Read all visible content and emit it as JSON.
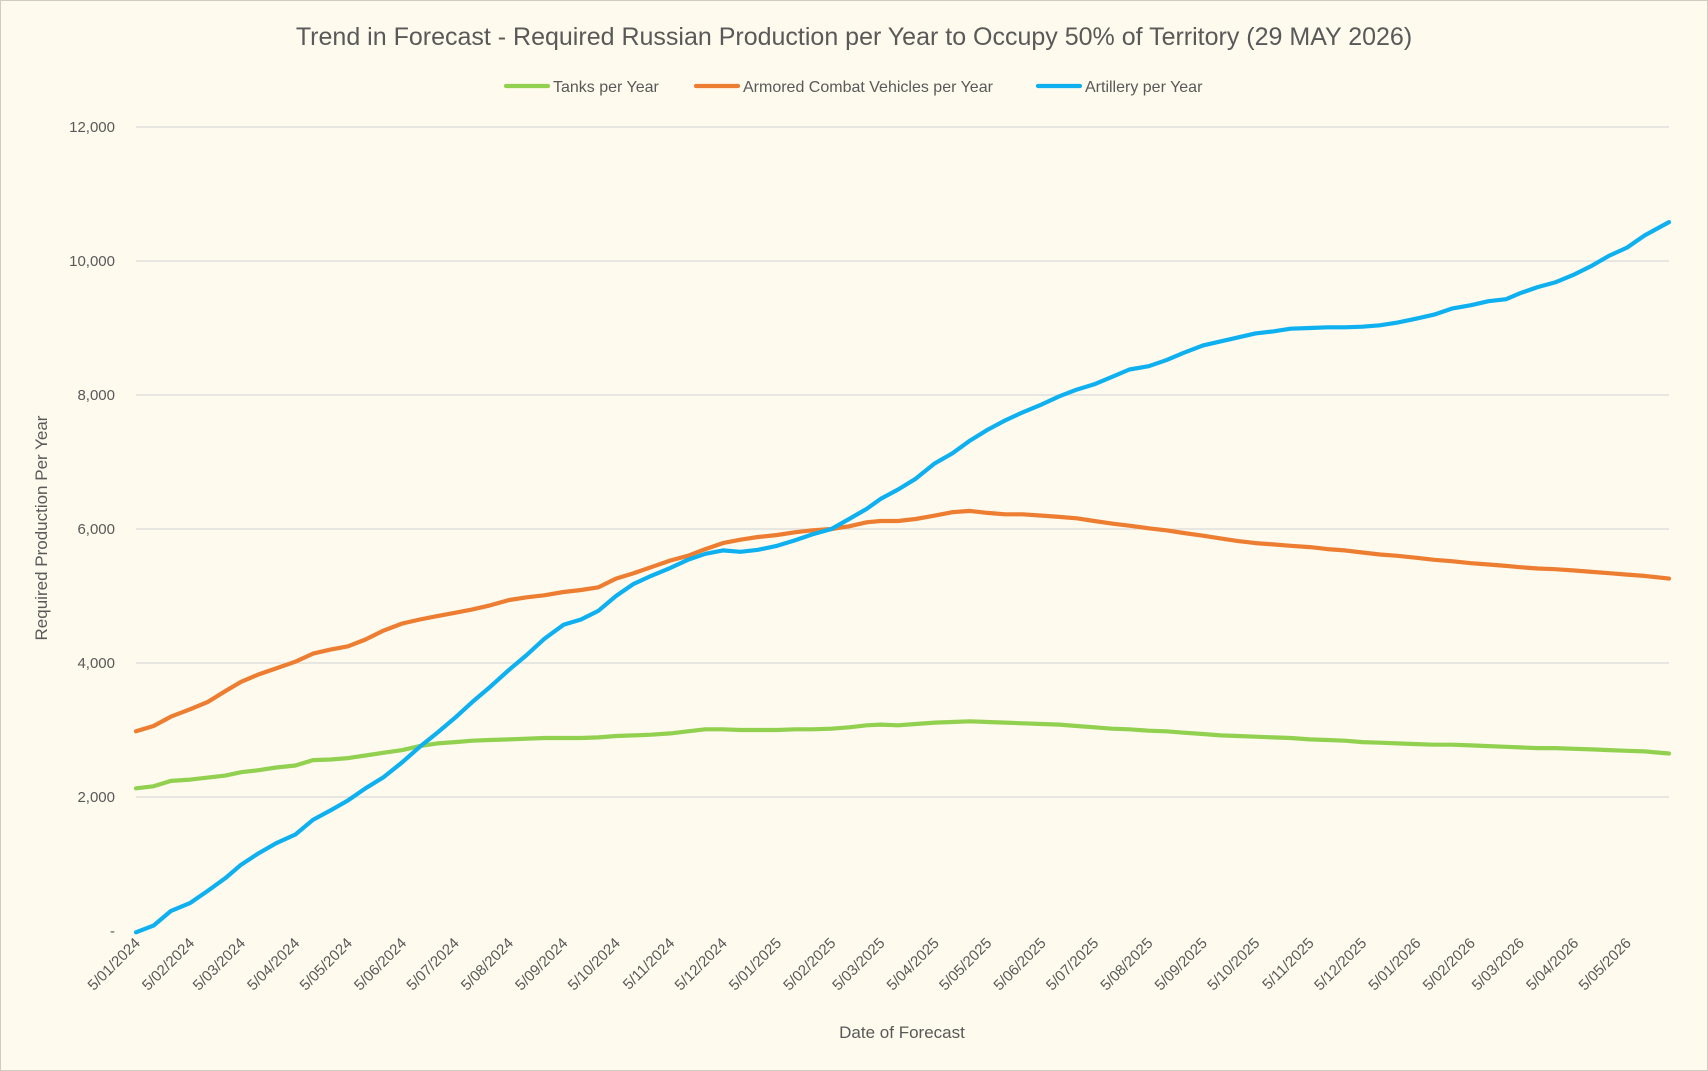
{
  "chart_data": {
    "type": "line",
    "title": "Trend in Forecast - Required Russian Production per Year to Occupy 50% of Territory (29 MAY 2026)",
    "xlabel": "Date of Forecast",
    "ylabel": "Required Production Per Year",
    "ylim": [
      0,
      12000
    ],
    "y_ticks": [
      {
        "value": 0,
        "label": "-"
      },
      {
        "value": 2000,
        "label": "2,000"
      },
      {
        "value": 4000,
        "label": "4,000"
      },
      {
        "value": 6000,
        "label": "6,000"
      },
      {
        "value": 8000,
        "label": "8,000"
      },
      {
        "value": 10000,
        "label": "10,000"
      },
      {
        "value": 12000,
        "label": "12,000"
      }
    ],
    "x_ticks": [
      "5/01/2024",
      "5/02/2024",
      "5/03/2024",
      "5/04/2024",
      "5/05/2024",
      "5/06/2024",
      "5/07/2024",
      "5/08/2024",
      "5/09/2024",
      "5/10/2024",
      "5/11/2024",
      "5/12/2024",
      "5/01/2025",
      "5/02/2025",
      "5/03/2025",
      "5/04/2025",
      "5/05/2025",
      "5/06/2025",
      "5/07/2025",
      "5/08/2025",
      "5/09/2025",
      "5/10/2025",
      "5/11/2025",
      "5/12/2025",
      "5/01/2026",
      "5/02/2026",
      "5/03/2026",
      "5/04/2026",
      "5/05/2026"
    ],
    "x_range": [
      "5/01/2024",
      "29/05/2026"
    ],
    "grid": true,
    "legend_position": "top",
    "series": [
      {
        "name": "Tanks per Year",
        "color": "#92d050",
        "points": [
          [
            "5/01/2024",
            2130
          ],
          [
            "15/01/2024",
            2160
          ],
          [
            "25/01/2024",
            2240
          ],
          [
            "5/02/2024",
            2260
          ],
          [
            "15/02/2024",
            2290
          ],
          [
            "25/02/2024",
            2320
          ],
          [
            "5/03/2024",
            2370
          ],
          [
            "15/03/2024",
            2400
          ],
          [
            "25/03/2024",
            2440
          ],
          [
            "5/04/2024",
            2470
          ],
          [
            "15/04/2024",
            2550
          ],
          [
            "25/04/2024",
            2560
          ],
          [
            "5/05/2024",
            2580
          ],
          [
            "15/05/2024",
            2620
          ],
          [
            "25/05/2024",
            2660
          ],
          [
            "5/06/2024",
            2700
          ],
          [
            "15/06/2024",
            2760
          ],
          [
            "25/06/2024",
            2800
          ],
          [
            "5/07/2024",
            2820
          ],
          [
            "15/07/2024",
            2840
          ],
          [
            "25/07/2024",
            2850
          ],
          [
            "5/08/2024",
            2860
          ],
          [
            "15/08/2024",
            2870
          ],
          [
            "25/08/2024",
            2880
          ],
          [
            "5/09/2024",
            2880
          ],
          [
            "15/09/2024",
            2880
          ],
          [
            "25/09/2024",
            2890
          ],
          [
            "5/10/2024",
            2910
          ],
          [
            "15/10/2024",
            2920
          ],
          [
            "25/10/2024",
            2930
          ],
          [
            "5/11/2024",
            2950
          ],
          [
            "15/11/2024",
            2980
          ],
          [
            "25/11/2024",
            3010
          ],
          [
            "5/12/2024",
            3010
          ],
          [
            "15/12/2024",
            3000
          ],
          [
            "25/12/2024",
            3000
          ],
          [
            "5/01/2025",
            3000
          ],
          [
            "15/01/2025",
            3010
          ],
          [
            "25/01/2025",
            3010
          ],
          [
            "5/02/2025",
            3020
          ],
          [
            "15/02/2025",
            3040
          ],
          [
            "25/02/2025",
            3070
          ],
          [
            "5/03/2025",
            3080
          ],
          [
            "15/03/2025",
            3070
          ],
          [
            "25/03/2025",
            3090
          ],
          [
            "5/04/2025",
            3110
          ],
          [
            "15/04/2025",
            3120
          ],
          [
            "25/04/2025",
            3130
          ],
          [
            "5/05/2025",
            3120
          ],
          [
            "15/05/2025",
            3110
          ],
          [
            "25/05/2025",
            3100
          ],
          [
            "5/06/2025",
            3090
          ],
          [
            "15/06/2025",
            3080
          ],
          [
            "25/06/2025",
            3060
          ],
          [
            "5/07/2025",
            3040
          ],
          [
            "15/07/2025",
            3020
          ],
          [
            "25/07/2025",
            3010
          ],
          [
            "5/08/2025",
            2990
          ],
          [
            "15/08/2025",
            2980
          ],
          [
            "25/08/2025",
            2960
          ],
          [
            "5/09/2025",
            2940
          ],
          [
            "15/09/2025",
            2920
          ],
          [
            "25/09/2025",
            2910
          ],
          [
            "5/10/2025",
            2900
          ],
          [
            "15/10/2025",
            2890
          ],
          [
            "25/10/2025",
            2880
          ],
          [
            "5/11/2025",
            2860
          ],
          [
            "15/11/2025",
            2850
          ],
          [
            "25/11/2025",
            2840
          ],
          [
            "5/12/2025",
            2820
          ],
          [
            "15/12/2025",
            2810
          ],
          [
            "25/12/2025",
            2800
          ],
          [
            "5/01/2026",
            2790
          ],
          [
            "15/01/2026",
            2780
          ],
          [
            "25/01/2026",
            2780
          ],
          [
            "5/02/2026",
            2770
          ],
          [
            "15/02/2026",
            2760
          ],
          [
            "25/02/2026",
            2750
          ],
          [
            "5/03/2026",
            2740
          ],
          [
            "15/03/2026",
            2730
          ],
          [
            "25/03/2026",
            2730
          ],
          [
            "5/04/2026",
            2720
          ],
          [
            "15/04/2026",
            2710
          ],
          [
            "25/04/2026",
            2700
          ],
          [
            "5/05/2026",
            2690
          ],
          [
            "15/05/2026",
            2680
          ],
          [
            "29/05/2026",
            2650
          ]
        ]
      },
      {
        "name": "Armored Combat Vehicles per Year",
        "color": "#ed7d31",
        "points": [
          [
            "5/01/2024",
            2980
          ],
          [
            "15/01/2024",
            3060
          ],
          [
            "25/01/2024",
            3200
          ],
          [
            "5/02/2024",
            3310
          ],
          [
            "15/02/2024",
            3420
          ],
          [
            "25/02/2024",
            3580
          ],
          [
            "5/03/2024",
            3720
          ],
          [
            "15/03/2024",
            3830
          ],
          [
            "25/03/2024",
            3920
          ],
          [
            "5/04/2024",
            4020
          ],
          [
            "15/04/2024",
            4140
          ],
          [
            "25/04/2024",
            4200
          ],
          [
            "5/05/2024",
            4250
          ],
          [
            "15/05/2024",
            4350
          ],
          [
            "25/05/2024",
            4480
          ],
          [
            "5/06/2024",
            4590
          ],
          [
            "15/06/2024",
            4650
          ],
          [
            "25/06/2024",
            4700
          ],
          [
            "5/07/2024",
            4750
          ],
          [
            "15/07/2024",
            4800
          ],
          [
            "25/07/2024",
            4860
          ],
          [
            "5/08/2024",
            4940
          ],
          [
            "15/08/2024",
            4980
          ],
          [
            "25/08/2024",
            5010
          ],
          [
            "5/09/2024",
            5060
          ],
          [
            "15/09/2024",
            5090
          ],
          [
            "25/09/2024",
            5130
          ],
          [
            "5/10/2024",
            5260
          ],
          [
            "15/10/2024",
            5340
          ],
          [
            "25/10/2024",
            5430
          ],
          [
            "5/11/2024",
            5530
          ],
          [
            "15/11/2024",
            5600
          ],
          [
            "25/11/2024",
            5700
          ],
          [
            "5/12/2024",
            5790
          ],
          [
            "15/12/2024",
            5840
          ],
          [
            "25/12/2024",
            5880
          ],
          [
            "5/01/2025",
            5910
          ],
          [
            "15/01/2025",
            5950
          ],
          [
            "25/01/2025",
            5980
          ],
          [
            "5/02/2025",
            6000
          ],
          [
            "15/02/2025",
            6040
          ],
          [
            "25/02/2025",
            6100
          ],
          [
            "5/03/2025",
            6120
          ],
          [
            "15/03/2025",
            6120
          ],
          [
            "25/03/2025",
            6150
          ],
          [
            "5/04/2025",
            6200
          ],
          [
            "15/04/2025",
            6250
          ],
          [
            "25/04/2025",
            6270
          ],
          [
            "5/05/2025",
            6240
          ],
          [
            "15/05/2025",
            6220
          ],
          [
            "25/05/2025",
            6220
          ],
          [
            "5/06/2025",
            6200
          ],
          [
            "15/06/2025",
            6180
          ],
          [
            "25/06/2025",
            6160
          ],
          [
            "5/07/2025",
            6120
          ],
          [
            "15/07/2025",
            6080
          ],
          [
            "25/07/2025",
            6050
          ],
          [
            "5/08/2025",
            6010
          ],
          [
            "15/08/2025",
            5980
          ],
          [
            "25/08/2025",
            5940
          ],
          [
            "5/09/2025",
            5900
          ],
          [
            "15/09/2025",
            5860
          ],
          [
            "25/09/2025",
            5820
          ],
          [
            "5/10/2025",
            5790
          ],
          [
            "15/10/2025",
            5770
          ],
          [
            "25/10/2025",
            5750
          ],
          [
            "5/11/2025",
            5730
          ],
          [
            "15/11/2025",
            5700
          ],
          [
            "25/11/2025",
            5680
          ],
          [
            "5/12/2025",
            5650
          ],
          [
            "15/12/2025",
            5620
          ],
          [
            "25/12/2025",
            5600
          ],
          [
            "5/01/2026",
            5570
          ],
          [
            "15/01/2026",
            5540
          ],
          [
            "25/01/2026",
            5520
          ],
          [
            "5/02/2026",
            5490
          ],
          [
            "15/02/2026",
            5470
          ],
          [
            "25/02/2026",
            5450
          ],
          [
            "5/03/2026",
            5430
          ],
          [
            "15/03/2026",
            5410
          ],
          [
            "25/03/2026",
            5400
          ],
          [
            "5/04/2026",
            5380
          ],
          [
            "15/04/2026",
            5360
          ],
          [
            "25/04/2026",
            5340
          ],
          [
            "5/05/2026",
            5320
          ],
          [
            "15/05/2026",
            5300
          ],
          [
            "29/05/2026",
            5260
          ]
        ]
      },
      {
        "name": "Artillery per Year",
        "color": "#0eb0f0",
        "points": [
          [
            "5/01/2024",
            -20
          ],
          [
            "15/01/2024",
            80
          ],
          [
            "25/01/2024",
            300
          ],
          [
            "5/02/2024",
            420
          ],
          [
            "15/02/2024",
            600
          ],
          [
            "25/02/2024",
            790
          ],
          [
            "5/03/2024",
            990
          ],
          [
            "15/03/2024",
            1160
          ],
          [
            "25/03/2024",
            1310
          ],
          [
            "5/04/2024",
            1440
          ],
          [
            "15/04/2024",
            1660
          ],
          [
            "25/04/2024",
            1800
          ],
          [
            "5/05/2024",
            1950
          ],
          [
            "15/05/2024",
            2130
          ],
          [
            "25/05/2024",
            2290
          ],
          [
            "5/06/2024",
            2520
          ],
          [
            "15/06/2024",
            2750
          ],
          [
            "25/06/2024",
            2960
          ],
          [
            "5/07/2024",
            3180
          ],
          [
            "15/07/2024",
            3420
          ],
          [
            "25/07/2024",
            3640
          ],
          [
            "5/08/2024",
            3900
          ],
          [
            "15/08/2024",
            4120
          ],
          [
            "25/08/2024",
            4360
          ],
          [
            "5/09/2024",
            4570
          ],
          [
            "15/09/2024",
            4650
          ],
          [
            "25/09/2024",
            4780
          ],
          [
            "5/10/2024",
            5000
          ],
          [
            "15/10/2024",
            5180
          ],
          [
            "25/10/2024",
            5300
          ],
          [
            "5/11/2024",
            5420
          ],
          [
            "15/11/2024",
            5540
          ],
          [
            "25/11/2024",
            5630
          ],
          [
            "5/12/2024",
            5680
          ],
          [
            "15/12/2024",
            5660
          ],
          [
            "25/12/2024",
            5690
          ],
          [
            "5/01/2025",
            5750
          ],
          [
            "15/01/2025",
            5830
          ],
          [
            "25/01/2025",
            5920
          ],
          [
            "5/02/2025",
            6000
          ],
          [
            "15/02/2025",
            6150
          ],
          [
            "25/02/2025",
            6300
          ],
          [
            "5/03/2025",
            6450
          ],
          [
            "15/03/2025",
            6590
          ],
          [
            "25/03/2025",
            6750
          ],
          [
            "5/04/2025",
            6980
          ],
          [
            "15/04/2025",
            7130
          ],
          [
            "25/04/2025",
            7320
          ],
          [
            "5/05/2025",
            7480
          ],
          [
            "15/05/2025",
            7620
          ],
          [
            "25/05/2025",
            7740
          ],
          [
            "5/06/2025",
            7860
          ],
          [
            "15/06/2025",
            7980
          ],
          [
            "25/06/2025",
            8080
          ],
          [
            "5/07/2025",
            8160
          ],
          [
            "15/07/2025",
            8270
          ],
          [
            "25/07/2025",
            8380
          ],
          [
            "5/08/2025",
            8430
          ],
          [
            "15/08/2025",
            8520
          ],
          [
            "25/08/2025",
            8630
          ],
          [
            "5/09/2025",
            8740
          ],
          [
            "15/09/2025",
            8800
          ],
          [
            "25/09/2025",
            8860
          ],
          [
            "5/10/2025",
            8920
          ],
          [
            "15/10/2025",
            8950
          ],
          [
            "25/10/2025",
            8990
          ],
          [
            "5/11/2025",
            9000
          ],
          [
            "15/11/2025",
            9010
          ],
          [
            "25/11/2025",
            9010
          ],
          [
            "5/12/2025",
            9020
          ],
          [
            "15/12/2025",
            9040
          ],
          [
            "25/12/2025",
            9080
          ],
          [
            "5/01/2026",
            9140
          ],
          [
            "15/01/2026",
            9200
          ],
          [
            "25/01/2026",
            9290
          ],
          [
            "5/02/2026",
            9340
          ],
          [
            "15/02/2026",
            9400
          ],
          [
            "25/02/2026",
            9430
          ],
          [
            "5/03/2026",
            9520
          ],
          [
            "15/03/2026",
            9610
          ],
          [
            "25/03/2026",
            9680
          ],
          [
            "5/04/2026",
            9800
          ],
          [
            "15/04/2026",
            9930
          ],
          [
            "25/04/2026",
            10080
          ],
          [
            "5/05/2026",
            10200
          ],
          [
            "15/05/2026",
            10380
          ],
          [
            "29/05/2026",
            10580
          ]
        ]
      }
    ]
  }
}
